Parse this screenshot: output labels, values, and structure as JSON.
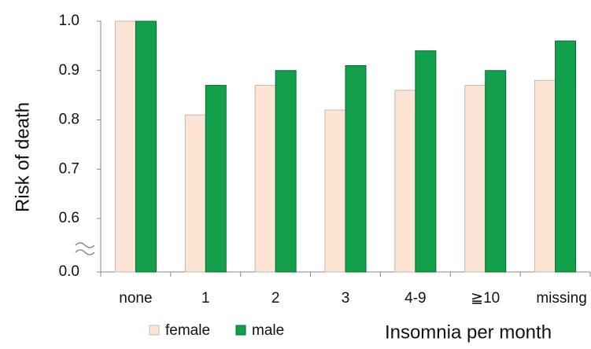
{
  "chart_data": {
    "type": "bar",
    "x_label": "Insomnia per month",
    "y_label": "Risk of death",
    "categories": [
      "none",
      "1",
      "2",
      "3",
      "4-9",
      "≧10",
      "missing"
    ],
    "series": [
      {
        "name": "female",
        "color": "#fde5d6",
        "values": [
          1.0,
          0.81,
          0.87,
          0.82,
          0.86,
          0.87,
          0.88
        ]
      },
      {
        "name": "male",
        "color": "#12a04a",
        "values": [
          1.0,
          0.87,
          0.9,
          0.91,
          0.94,
          0.9,
          0.96
        ]
      }
    ],
    "ylim": [
      0,
      1
    ],
    "y_break": [
      0,
      0.6
    ],
    "yticks": [
      {
        "value": 0,
        "label": "0.0"
      },
      0.6,
      0.7,
      0.8,
      0.9,
      {
        "value": 1,
        "label": "1.0"
      }
    ],
    "legend": "bottom-left"
  }
}
